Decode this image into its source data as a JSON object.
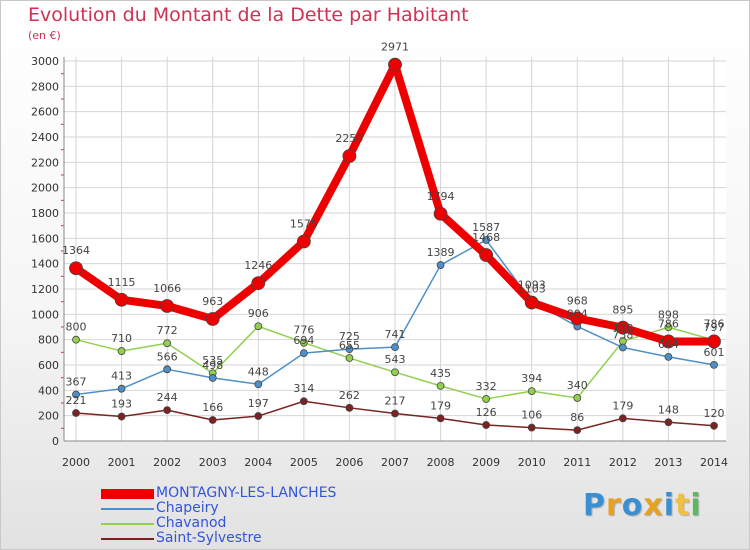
{
  "chart_data": {
    "type": "line",
    "title": "Evolution du Montant de la Dette par Habitant",
    "subtitle": "(en €)",
    "ylim": [
      0,
      3000
    ],
    "yticks": [
      "0",
      "200",
      "400",
      "600",
      "800",
      "1000",
      "1200",
      "1400",
      "1600",
      "1800",
      "2000",
      "2200",
      "2400",
      "2600",
      "2800",
      "3000"
    ],
    "x": [
      "2000",
      "2001",
      "2002",
      "2003",
      "2004",
      "2005",
      "2006",
      "2007",
      "2008",
      "2009",
      "2010",
      "2011",
      "2012",
      "2013",
      "2014"
    ],
    "grid": true,
    "legend_position": "bottom-left",
    "series": [
      {
        "name": "MONTAGNY-LES-LANCHES",
        "color": "#ee0000",
        "values": [
          1364,
          1115,
          1066,
          963,
          1246,
          1575,
          2250,
          2971,
          1794,
          1468,
          1093,
          968,
          895,
          786,
          786
        ]
      },
      {
        "name": "Chapeiry",
        "color": "#4f8fc9",
        "values": [
          367,
          413,
          566,
          498,
          448,
          694,
          725,
          741,
          1389,
          1587,
          1103,
          904,
          738,
          664,
          601
        ]
      },
      {
        "name": "Chavanod",
        "color": "#92d050",
        "values": [
          800,
          710,
          772,
          535,
          906,
          776,
          655,
          543,
          435,
          332,
          394,
          340,
          788,
          898,
          797
        ]
      },
      {
        "name": "Saint-Sylvestre",
        "color": "#7b2323",
        "values": [
          221,
          193,
          244,
          166,
          197,
          314,
          262,
          217,
          179,
          126,
          106,
          86,
          179,
          148,
          120
        ]
      }
    ]
  },
  "branding": {
    "logo_letters": [
      {
        "ch": "P",
        "color": "#3a8fd0"
      },
      {
        "ch": "r",
        "color": "#e8a020"
      },
      {
        "ch": "o",
        "color": "#3a8fd0"
      },
      {
        "ch": "x",
        "color": "#e8a020"
      },
      {
        "ch": "i",
        "color": "#3a8fd0"
      },
      {
        "ch": "t",
        "color": "#f0c040"
      },
      {
        "ch": "i",
        "color": "#5cb85c"
      }
    ]
  }
}
